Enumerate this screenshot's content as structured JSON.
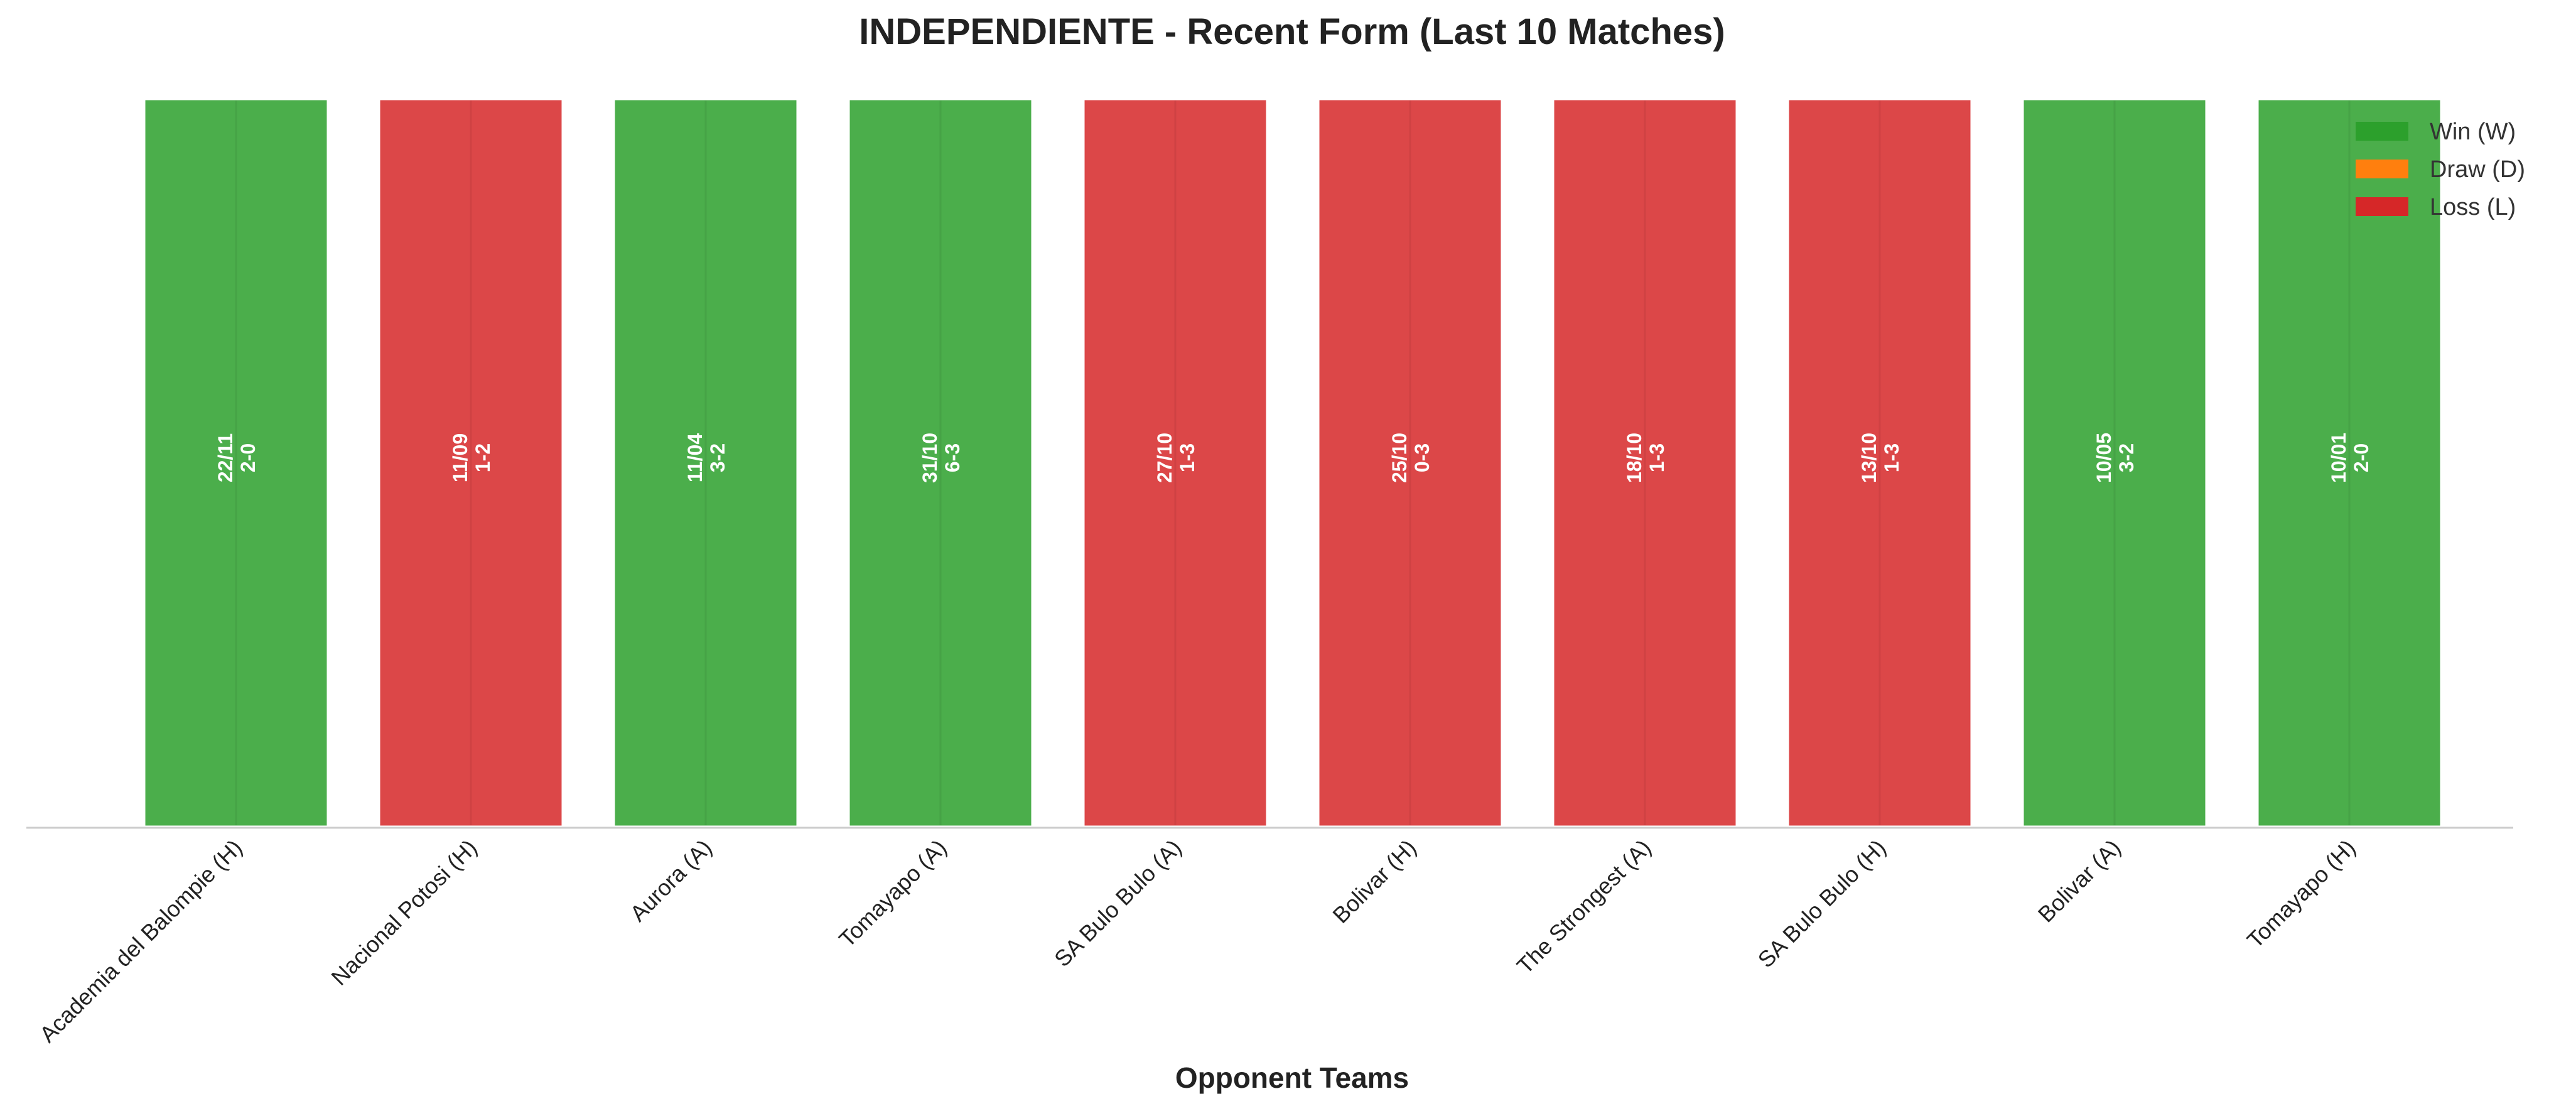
{
  "chart_data": {
    "type": "bar",
    "title": "INDEPENDIENTE - Recent Form (Last 10 Matches)",
    "xlabel": "Opponent Teams",
    "ylabel": "",
    "grid": false,
    "legend_position": "top-right",
    "legend": [
      {
        "key": "W",
        "label": "Win (W)",
        "color": "#2ca02c"
      },
      {
        "key": "D",
        "label": "Draw (D)",
        "color": "#ff7f0e"
      },
      {
        "key": "L",
        "label": "Loss (L)",
        "color": "#d62728"
      }
    ],
    "categories": [
      "Academia del Balompie (H)",
      "Nacional Potosi (H)",
      "Aurora (A)",
      "Tomayapo (A)",
      "SA Bulo Bulo (A)",
      "Bolivar (H)",
      "The Strongest (A)",
      "SA Bulo Bulo (H)",
      "Bolivar (A)",
      "Tomayapo (H)"
    ],
    "values": [
      1,
      1,
      1,
      1,
      1,
      1,
      1,
      1,
      1,
      1
    ],
    "results": [
      "W",
      "L",
      "W",
      "W",
      "L",
      "L",
      "L",
      "L",
      "W",
      "W"
    ],
    "dates": [
      "22/11",
      "11/09",
      "11/04",
      "31/10",
      "27/10",
      "25/10",
      "18/10",
      "13/10",
      "10/05",
      "10/01"
    ],
    "scores": [
      "2-0",
      "1-2",
      "3-2",
      "6-3",
      "1-3",
      "0-3",
      "1-3",
      "1-3",
      "3-2",
      "2-0"
    ]
  }
}
